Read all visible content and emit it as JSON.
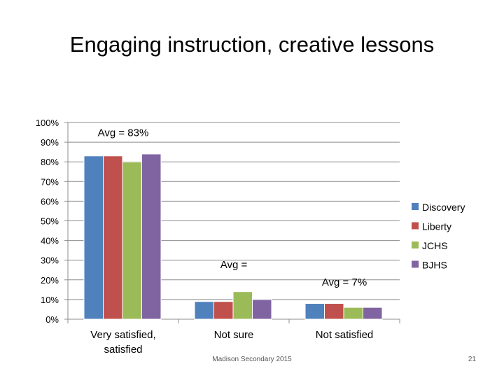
{
  "slide": {
    "title": "Engaging instruction, creative lessons",
    "footer": "Madison Secondary 2015",
    "page_number": "21"
  },
  "chart_data": {
    "type": "bar",
    "categories": [
      [
        "Very satisfied,",
        "satisfied"
      ],
      [
        "Not sure"
      ],
      [
        "Not satisfied"
      ]
    ],
    "series": [
      {
        "name": "Discovery",
        "color": "#4f81bd",
        "values": [
          83,
          9,
          8
        ]
      },
      {
        "name": "Liberty",
        "color": "#c0504d",
        "values": [
          83,
          9,
          8
        ]
      },
      {
        "name": "JCHS",
        "color": "#9bbb59",
        "values": [
          80,
          14,
          6
        ]
      },
      {
        "name": "BJHS",
        "color": "#8064a2",
        "values": [
          84,
          10,
          6
        ]
      }
    ],
    "ylim": [
      0,
      100
    ],
    "yticks": [
      0,
      10,
      20,
      30,
      40,
      50,
      60,
      70,
      80,
      90,
      100
    ],
    "ytick_labels": [
      "0%",
      "10%",
      "20%",
      "30%",
      "40%",
      "50%",
      "60%",
      "70%",
      "80%",
      "90%",
      "100%"
    ],
    "grid": true,
    "legend_position": "right",
    "annotations": [
      {
        "text": "Avg = 83%",
        "category": 0,
        "value": 93
      },
      {
        "text": "Avg =",
        "category": 1,
        "value": 26
      },
      {
        "text": "Avg = 7%",
        "category": 2,
        "value": 17
      }
    ]
  }
}
